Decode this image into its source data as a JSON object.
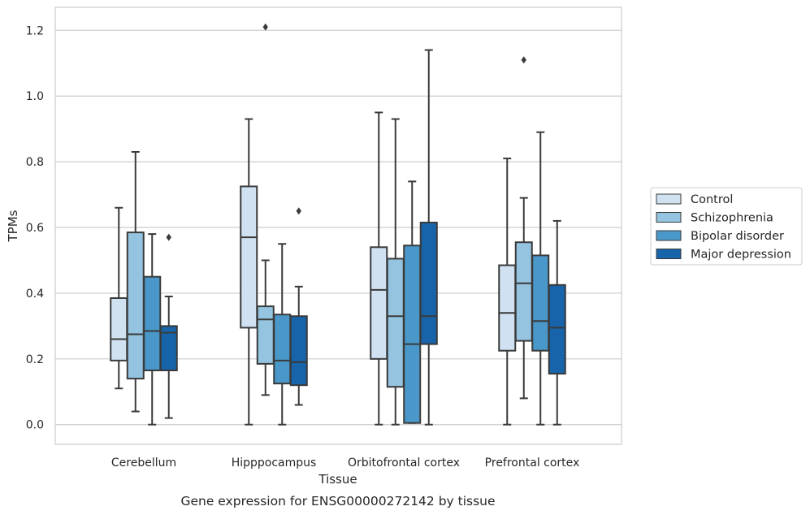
{
  "chart_data": {
    "type": "box",
    "caption": "Gene expression for ENSG00000272142 by tissue",
    "xlabel": "Tissue",
    "ylabel": "TPMs",
    "ylim": [
      -0.06,
      1.27
    ],
    "yticks": [
      0.0,
      0.2,
      0.4,
      0.6,
      0.8,
      1.0,
      1.2
    ],
    "ytick_labels": [
      "0.0",
      "0.2",
      "0.4",
      "0.6",
      "0.8",
      "1.0",
      "1.2"
    ],
    "grid": true,
    "legend_placement": "right",
    "categories": [
      "Cerebellum",
      "Hipppocampus",
      "Orbitofrontal cortex",
      "Prefrontal cortex"
    ],
    "series": [
      {
        "name": "Control",
        "color": "#d0e1f2",
        "boxes": [
          {
            "whislo": 0.11,
            "q1": 0.195,
            "med": 0.26,
            "q3": 0.385,
            "whishi": 0.66,
            "fliers": []
          },
          {
            "whislo": 0.0,
            "q1": 0.295,
            "med": 0.57,
            "q3": 0.725,
            "whishi": 0.93,
            "fliers": []
          },
          {
            "whislo": 0.0,
            "q1": 0.2,
            "med": 0.41,
            "q3": 0.54,
            "whishi": 0.95,
            "fliers": []
          },
          {
            "whislo": 0.0,
            "q1": 0.225,
            "med": 0.34,
            "q3": 0.485,
            "whishi": 0.81,
            "fliers": []
          }
        ]
      },
      {
        "name": "Schizophrenia",
        "color": "#94c4df",
        "boxes": [
          {
            "whislo": 0.04,
            "q1": 0.14,
            "med": 0.275,
            "q3": 0.585,
            "whishi": 0.83,
            "fliers": []
          },
          {
            "whislo": 0.09,
            "q1": 0.185,
            "med": 0.32,
            "q3": 0.36,
            "whishi": 0.5,
            "fliers": [
              1.21
            ]
          },
          {
            "whislo": 0.0,
            "q1": 0.115,
            "med": 0.33,
            "q3": 0.505,
            "whishi": 0.93,
            "fliers": []
          },
          {
            "whislo": 0.08,
            "q1": 0.255,
            "med": 0.43,
            "q3": 0.555,
            "whishi": 0.69,
            "fliers": [
              1.11
            ]
          }
        ]
      },
      {
        "name": "Bipolar disorder",
        "color": "#4a98c9",
        "boxes": [
          {
            "whislo": 0.0,
            "q1": 0.165,
            "med": 0.285,
            "q3": 0.45,
            "whishi": 0.58,
            "fliers": []
          },
          {
            "whislo": 0.0,
            "q1": 0.125,
            "med": 0.195,
            "q3": 0.335,
            "whishi": 0.55,
            "fliers": []
          },
          {
            "whislo": 0.005,
            "q1": 0.005,
            "med": 0.245,
            "q3": 0.545,
            "whishi": 0.74,
            "fliers": []
          },
          {
            "whislo": 0.0,
            "q1": 0.225,
            "med": 0.315,
            "q3": 0.515,
            "whishi": 0.89,
            "fliers": []
          }
        ]
      },
      {
        "name": "Major depression",
        "color": "#1764ab",
        "boxes": [
          {
            "whislo": 0.02,
            "q1": 0.165,
            "med": 0.28,
            "q3": 0.3,
            "whishi": 0.39,
            "fliers": [
              0.57
            ]
          },
          {
            "whislo": 0.06,
            "q1": 0.12,
            "med": 0.19,
            "q3": 0.33,
            "whishi": 0.42,
            "fliers": [
              0.65
            ]
          },
          {
            "whislo": 0.0,
            "q1": 0.245,
            "med": 0.33,
            "q3": 0.615,
            "whishi": 1.14,
            "fliers": []
          },
          {
            "whislo": 0.0,
            "q1": 0.155,
            "med": 0.295,
            "q3": 0.425,
            "whishi": 0.62,
            "fliers": []
          }
        ]
      }
    ]
  }
}
